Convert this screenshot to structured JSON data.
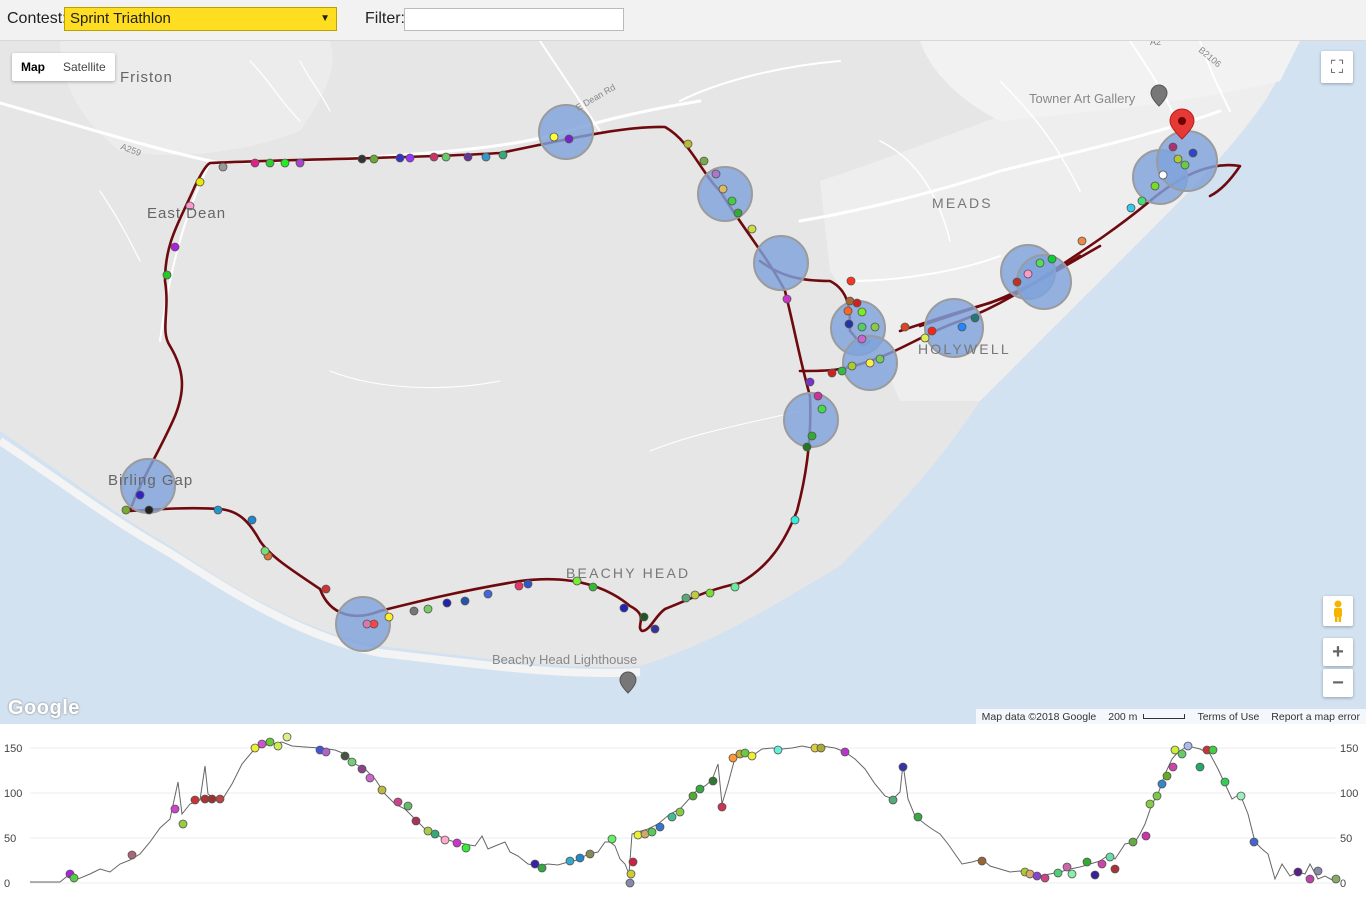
{
  "toolbar": {
    "contest_label": "Contest:",
    "contest_value": "Sprint Triathlon",
    "filter_label": "Filter:",
    "filter_value": ""
  },
  "map": {
    "map_type_buttons": [
      "Map",
      "Satellite"
    ],
    "active_map_type": "Map",
    "place_labels": {
      "friston": "Friston",
      "east_dean": "East Dean",
      "birling_gap": "Birling Gap",
      "beachy_head": "BEACHY HEAD",
      "beachy_head_lighthouse": "Beachy Head Lighthouse",
      "meads": "MEADS",
      "holywell": "HOLYWELL",
      "towner_art_gallery": "Towner Art Gallery"
    },
    "road_labels": {
      "a259": "A259",
      "e_dean_rd": "E Dean Rd",
      "b2106": "B2106",
      "a2": "A2"
    },
    "zoom_in": "+",
    "zoom_out": "−",
    "google_logo": "Google",
    "attribution": {
      "map_data": "Map data ©2018 Google",
      "scale": "200 m",
      "terms": "Terms of Use",
      "report": "Report a map error"
    },
    "colors": {
      "land": "#e6e6e6",
      "sea": "#d3e2f1",
      "route": "#6e0a0e",
      "cluster": "#7fa2dc"
    }
  },
  "elevation": {
    "y_ticks": [
      "0",
      "50",
      "100",
      "150"
    ],
    "y_range": [
      0,
      165
    ]
  }
}
